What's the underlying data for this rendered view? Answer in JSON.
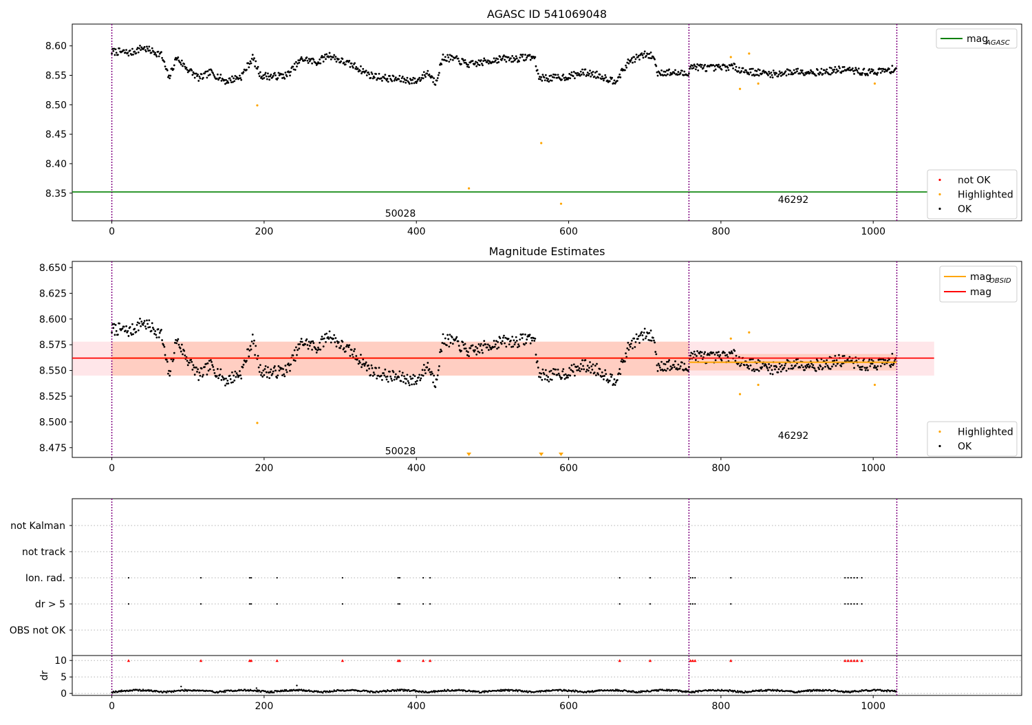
{
  "chart_data": [
    {
      "type": "scatter",
      "title": "AGASC ID 541069048",
      "xlim": [
        -52,
        1195
      ],
      "ylim": [
        8.303,
        8.637
      ],
      "xticks": [
        0,
        200,
        400,
        600,
        800,
        1000
      ],
      "xtick_labels": [
        "0",
        "200",
        "400",
        "600",
        "800",
        "1000"
      ],
      "yticks": [
        8.35,
        8.4,
        8.45,
        8.5,
        8.55,
        8.6
      ],
      "ytick_labels": [
        "8.35",
        "8.40",
        "8.45",
        "8.50",
        "8.55",
        "8.60"
      ],
      "obsid_boundaries": [
        0,
        758,
        1031
      ],
      "obsid_labels": [
        {
          "text": "50028",
          "x": 379,
          "y": 8.316
        },
        {
          "text": "46292",
          "x": 895,
          "y": 8.339
        }
      ],
      "lines": [
        {
          "name": "mag_AGASC",
          "y": 8.352,
          "x": [
            -52,
            1080
          ],
          "color": "#008000"
        }
      ],
      "highlighted": {
        "x": [
          191,
          469,
          564,
          590,
          813,
          825,
          837,
          849,
          1002
        ],
        "y": [
          8.499,
          8.358,
          8.435,
          8.332,
          8.581,
          8.527,
          8.587,
          8.536,
          8.536
        ],
        "color": "#ffa500"
      },
      "ok_trend": {
        "x": [
          0,
          10,
          25,
          40,
          55,
          65,
          75,
          85,
          100,
          115,
          130,
          150,
          170,
          185,
          195,
          210,
          230,
          250,
          270,
          285,
          300,
          320,
          340,
          360,
          380,
          400,
          415,
          425,
          435,
          450,
          470,
          490,
          510,
          530,
          550,
          556,
          560,
          575,
          600,
          620,
          640,
          660,
          670,
          680,
          700,
          712,
          716,
          730,
          756,
          760,
          790,
          815,
          830,
          845,
          870,
          900,
          930,
          960,
          990,
          1020,
          1031
        ],
        "y": [
          8.59,
          8.59,
          8.588,
          8.597,
          8.59,
          8.585,
          8.545,
          8.58,
          8.56,
          8.545,
          8.555,
          8.54,
          8.548,
          8.58,
          8.55,
          8.548,
          8.55,
          8.578,
          8.572,
          8.585,
          8.575,
          8.565,
          8.55,
          8.545,
          8.543,
          8.54,
          8.555,
          8.538,
          8.58,
          8.578,
          8.568,
          8.573,
          8.578,
          8.578,
          8.582,
          8.578,
          8.547,
          8.545,
          8.548,
          8.555,
          8.55,
          8.54,
          8.555,
          8.575,
          8.585,
          8.582,
          8.555,
          8.555,
          8.552,
          8.565,
          8.562,
          8.565,
          8.558,
          8.555,
          8.552,
          8.557,
          8.555,
          8.56,
          8.555,
          8.558,
          8.563
        ],
        "noise": 0.006,
        "points": 1031,
        "color": "#000000"
      },
      "legend_top": {
        "placement": "top-right",
        "items": [
          {
            "label": "mag",
            "sub": "AGASC",
            "color": "#008000"
          }
        ]
      },
      "legend_bottom": {
        "placement": "lower-right",
        "items": [
          {
            "label": "not OK",
            "color": "#ff0000"
          },
          {
            "label": "Highlighted",
            "color": "#ffa500"
          },
          {
            "label": "OK",
            "color": "#000000"
          }
        ]
      }
    },
    {
      "type": "scatter",
      "title": "Magnitude Estimates",
      "xlim": [
        -52,
        1195
      ],
      "ylim": [
        8.4655,
        8.656
      ],
      "xticks": [
        0,
        200,
        400,
        600,
        800,
        1000
      ],
      "xtick_labels": [
        "0",
        "200",
        "400",
        "600",
        "800",
        "1000"
      ],
      "yticks": [
        8.475,
        8.5,
        8.525,
        8.55,
        8.575,
        8.6,
        8.625,
        8.65
      ],
      "ytick_labels": [
        "8.475",
        "8.500",
        "8.525",
        "8.550",
        "8.575",
        "8.600",
        "8.625",
        "8.650"
      ],
      "obsid_boundaries": [
        0,
        758,
        1031
      ],
      "obsid_labels": [
        {
          "text": "50028",
          "x": 379,
          "y": 8.472
        },
        {
          "text": "46292",
          "x": 895,
          "y": 8.487
        }
      ],
      "mag": {
        "name": "mag",
        "y": 8.562,
        "band": [
          8.545,
          8.578
        ],
        "x": [
          -52,
          1080
        ],
        "color": "#ff0000",
        "band_color": "#ffb6c1"
      },
      "mag_obsid": [
        {
          "x": [
            0,
            758
          ],
          "y": 8.562,
          "band": [
            8.545,
            8.578
          ]
        },
        {
          "x": [
            758,
            1031
          ],
          "y": 8.558,
          "band": [
            8.55,
            8.566
          ]
        }
      ],
      "mag_obsid_color": "#ffa500",
      "mag_obsid_band_color": "#ffa07a",
      "highlighted": {
        "x": [
          191,
          813,
          825,
          837,
          849,
          1002
        ],
        "y": [
          8.499,
          8.581,
          8.527,
          8.587,
          8.536,
          8.536
        ],
        "color": "#ffa500"
      },
      "off_scale": {
        "x": [
          469,
          564,
          590
        ],
        "marker": "triangle-down",
        "color": "#ffa500"
      },
      "legend_top": {
        "placement": "top-right",
        "items": [
          {
            "label": "mag",
            "sub": "OBSID",
            "color": "#ffa500"
          },
          {
            "label": "mag",
            "sub": "",
            "color": "#ff0000"
          }
        ]
      },
      "legend_bottom": {
        "placement": "lower-right",
        "items": [
          {
            "label": "Highlighted",
            "color": "#ffa500"
          },
          {
            "label": "OK",
            "color": "#000000"
          }
        ]
      }
    },
    {
      "type": "scatter",
      "title": "",
      "xlim": [
        -52,
        1195
      ],
      "categories": [
        "not Kalman",
        "not track",
        "Ion. rad.",
        "dr > 5",
        "OBS not OK"
      ],
      "flags": {
        "Ion. rad.": [
          22,
          117,
          181,
          183,
          217,
          303,
          376,
          378,
          409,
          418,
          667,
          707,
          760,
          763,
          766,
          813,
          963,
          967,
          971,
          975,
          979,
          985
        ],
        "dr > 5": [
          22,
          117,
          181,
          183,
          217,
          303,
          376,
          378,
          409,
          418,
          667,
          707,
          760,
          763,
          766,
          813,
          963,
          967,
          971,
          975,
          979,
          985
        ]
      }
    },
    {
      "type": "scatter",
      "title": "",
      "ylabel": "dr",
      "xlim": [
        -52,
        1195
      ],
      "ylim": [
        -0.6,
        11.5
      ],
      "xticks": [
        0,
        200,
        400,
        600,
        800,
        1000
      ],
      "xtick_labels": [
        "0",
        "200",
        "400",
        "600",
        "800",
        "1000"
      ],
      "yticks": [
        0,
        5,
        10
      ],
      "ytick_labels": [
        "0",
        "5",
        "10"
      ],
      "obsid_boundaries": [
        0,
        758,
        1031
      ],
      "dr_over": {
        "x": [
          22,
          117,
          181,
          183,
          217,
          303,
          376,
          378,
          409,
          418,
          667,
          707,
          760,
          763,
          766,
          813,
          963,
          967,
          971,
          975,
          979,
          985
        ],
        "y": 10,
        "color": "#ff0000"
      },
      "dr_points": {
        "points": 1031,
        "typical": 0.8,
        "spikes": [
          {
            "x": 91,
            "y": 2.1
          },
          {
            "x": 190,
            "y": 1.6
          },
          {
            "x": 243,
            "y": 2.4
          }
        ]
      }
    }
  ]
}
